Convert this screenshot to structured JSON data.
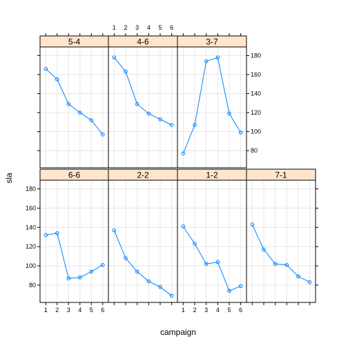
{
  "chart_data": {
    "type": "line",
    "xlabel": "campaign",
    "ylabel": "sla",
    "x_ticks": [
      1,
      2,
      3,
      4,
      5,
      6
    ],
    "y_ticks": [
      80,
      100,
      120,
      140,
      160,
      180
    ],
    "xlim": [
      0.5,
      6.5
    ],
    "ylim": [
      62,
      189
    ],
    "grid": true,
    "colors": {
      "line": "#0080ff",
      "strip_bg": "#ffe5cc",
      "grid": "#e6e6e6",
      "frame": "#000000"
    },
    "panels": [
      {
        "label": "6-6",
        "row": 1,
        "col": 0,
        "x": [
          1,
          2,
          3,
          4,
          5,
          6
        ],
        "y": [
          132,
          134,
          87,
          88,
          94,
          101
        ]
      },
      {
        "label": "2-2",
        "row": 1,
        "col": 1,
        "x": [
          1,
          2,
          3,
          4,
          5,
          6
        ],
        "y": [
          137,
          108,
          94,
          84,
          78,
          69
        ]
      },
      {
        "label": "1-2",
        "row": 1,
        "col": 2,
        "x": [
          1,
          2,
          3,
          4,
          5,
          6
        ],
        "y": [
          141,
          123,
          102,
          104,
          74,
          79
        ]
      },
      {
        "label": "7-1",
        "row": 1,
        "col": 3,
        "x": [
          1,
          2,
          3,
          4,
          5,
          6
        ],
        "y": [
          143,
          117,
          102,
          101,
          89,
          83
        ]
      },
      {
        "label": "5-4",
        "row": 0,
        "col": 0,
        "x": [
          1,
          2,
          3,
          4,
          5,
          6
        ],
        "y": [
          166,
          155,
          129,
          120,
          112,
          97
        ]
      },
      {
        "label": "4-6",
        "row": 0,
        "col": 1,
        "x": [
          1,
          2,
          3,
          4,
          5,
          6
        ],
        "y": [
          178,
          163,
          129,
          119,
          113,
          107
        ]
      },
      {
        "label": "3-7",
        "row": 0,
        "col": 2,
        "x": [
          1,
          2,
          3,
          4,
          5,
          6
        ],
        "y": [
          77,
          107,
          174,
          178,
          119,
          99
        ]
      }
    ]
  }
}
